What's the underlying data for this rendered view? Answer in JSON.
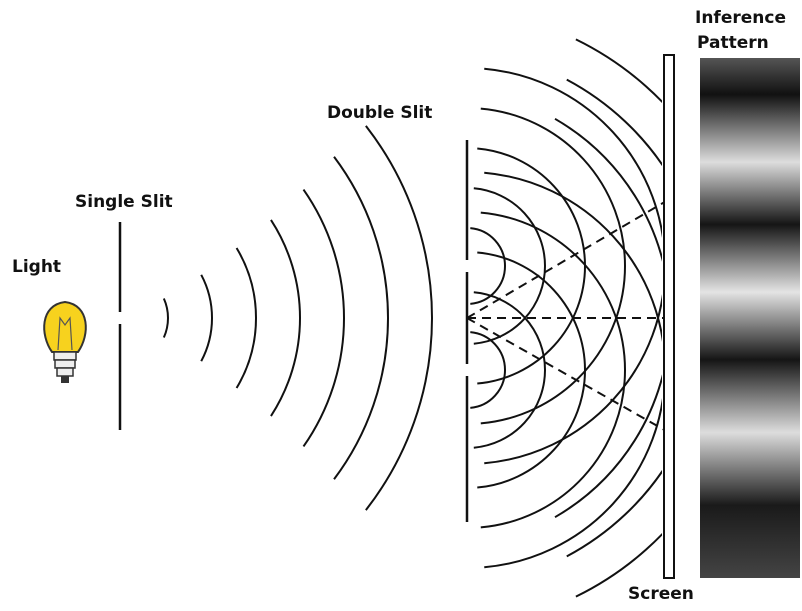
{
  "labels": {
    "light": "Light",
    "single_slit": "Single Slit",
    "double_slit": "Double Slit",
    "pattern": [
      "Inference",
      "Pattern"
    ],
    "screen": "Screen"
  }
}
